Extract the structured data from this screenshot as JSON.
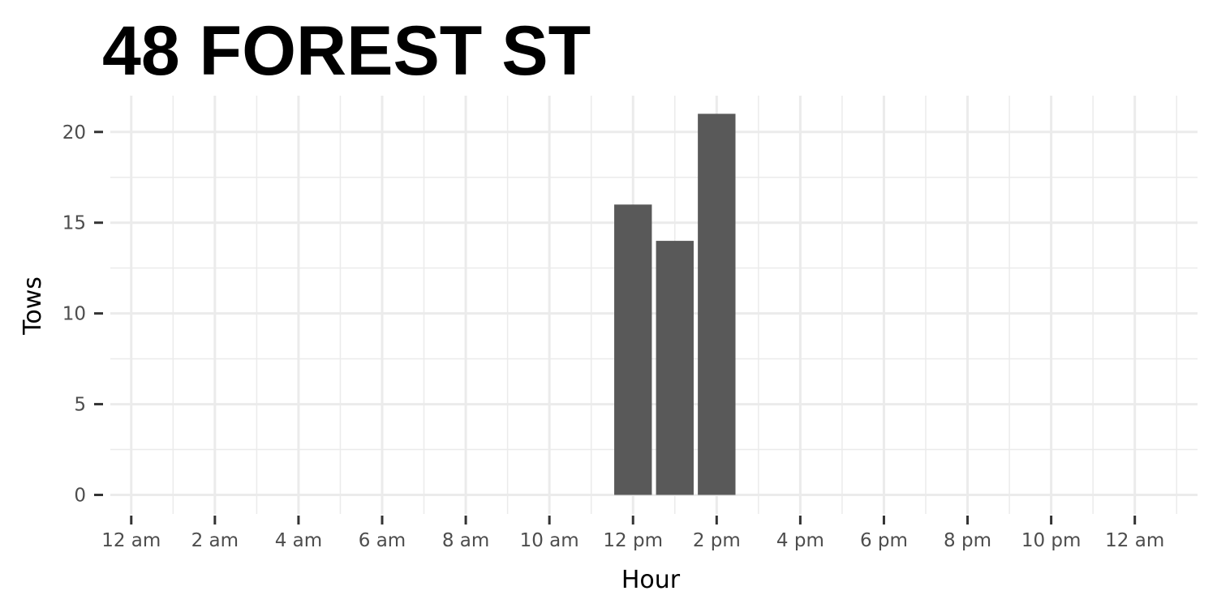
{
  "chart_data": {
    "type": "bar",
    "title": "48 FOREST ST",
    "xlabel": "Hour",
    "ylabel": "Tows",
    "x_tick_labels": [
      "12 am",
      "2 am",
      "4 am",
      "6 am",
      "8 am",
      "10 am",
      "12 pm",
      "2 pm",
      "4 pm",
      "6 pm",
      "8 pm",
      "10 pm",
      "12 am"
    ],
    "x_tick_hours": [
      0,
      2,
      4,
      6,
      8,
      10,
      12,
      14,
      16,
      18,
      20,
      22,
      24
    ],
    "xlim": [
      -0.5,
      25.5
    ],
    "ylim": [
      -1.05,
      22
    ],
    "y_ticks": [
      0,
      5,
      10,
      15,
      20
    ],
    "bars": [
      {
        "hour": 12,
        "value": 16
      },
      {
        "hour": 13,
        "value": 14
      },
      {
        "hour": 14,
        "value": 21
      }
    ],
    "bar_color": "#595959",
    "grid": true,
    "grid_color": "#ebebeb",
    "legend": "none"
  }
}
